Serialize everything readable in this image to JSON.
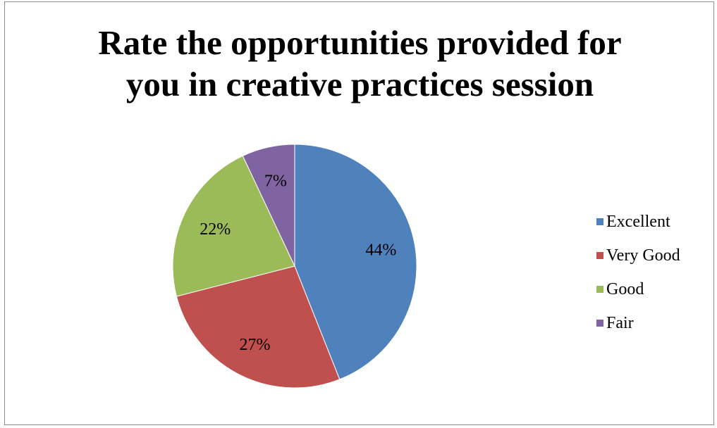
{
  "chart_data": {
    "type": "pie",
    "title": [
      "Rate the opportunities provided for",
      "you in creative practices session"
    ],
    "categories": [
      "Excellent",
      "Very Good",
      "Good",
      "Fair"
    ],
    "values": [
      44,
      27,
      22,
      7
    ],
    "labels": [
      "44%",
      "27%",
      "22%",
      "7%"
    ],
    "colors": [
      "#4f81bd",
      "#c0504d",
      "#9bbb59",
      "#8064a2"
    ],
    "legend": "right"
  }
}
